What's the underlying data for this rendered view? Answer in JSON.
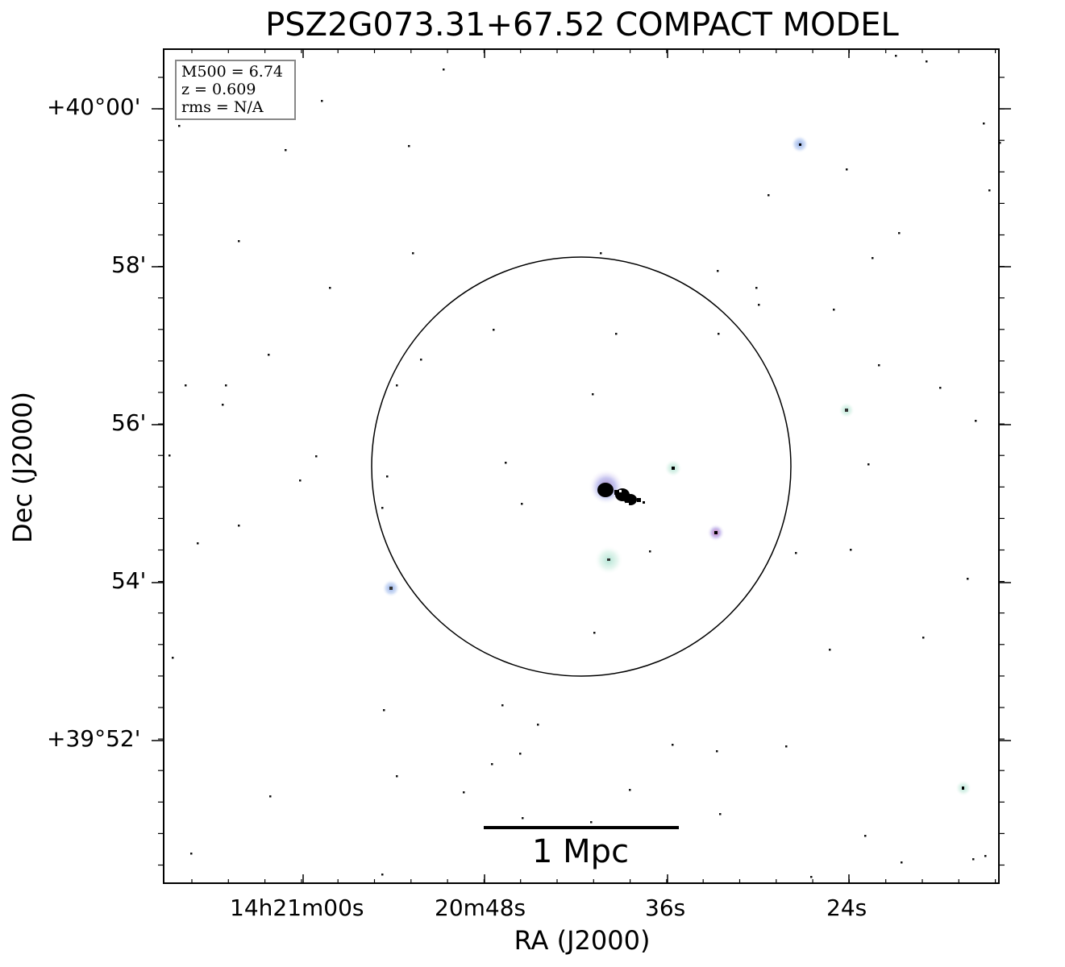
{
  "title": "PSZ2G073.31+67.52 COMPACT MODEL",
  "axes": {
    "xlabel": "RA (J2000)",
    "ylabel": "Dec (J2000)",
    "x_ticks": [
      "14h21m00s",
      "20m48s",
      "36s",
      "24s"
    ],
    "y_ticks": [
      "+40°00'",
      "58'",
      "56'",
      "54'",
      "+39°52'"
    ]
  },
  "legend": {
    "mass": "M500 = 6.74",
    "redshift": "z = 0.609",
    "rms": "rms = N/A"
  },
  "scale_bar": {
    "label": "1 Mpc"
  },
  "colors": {
    "frame": "#000000",
    "legend_border": "#888888",
    "source_halo_blue": "#a9c4ee",
    "source_halo_cyan": "#cfeee2",
    "source_halo_pink": "#e08aa6",
    "core": "#000000"
  }
}
